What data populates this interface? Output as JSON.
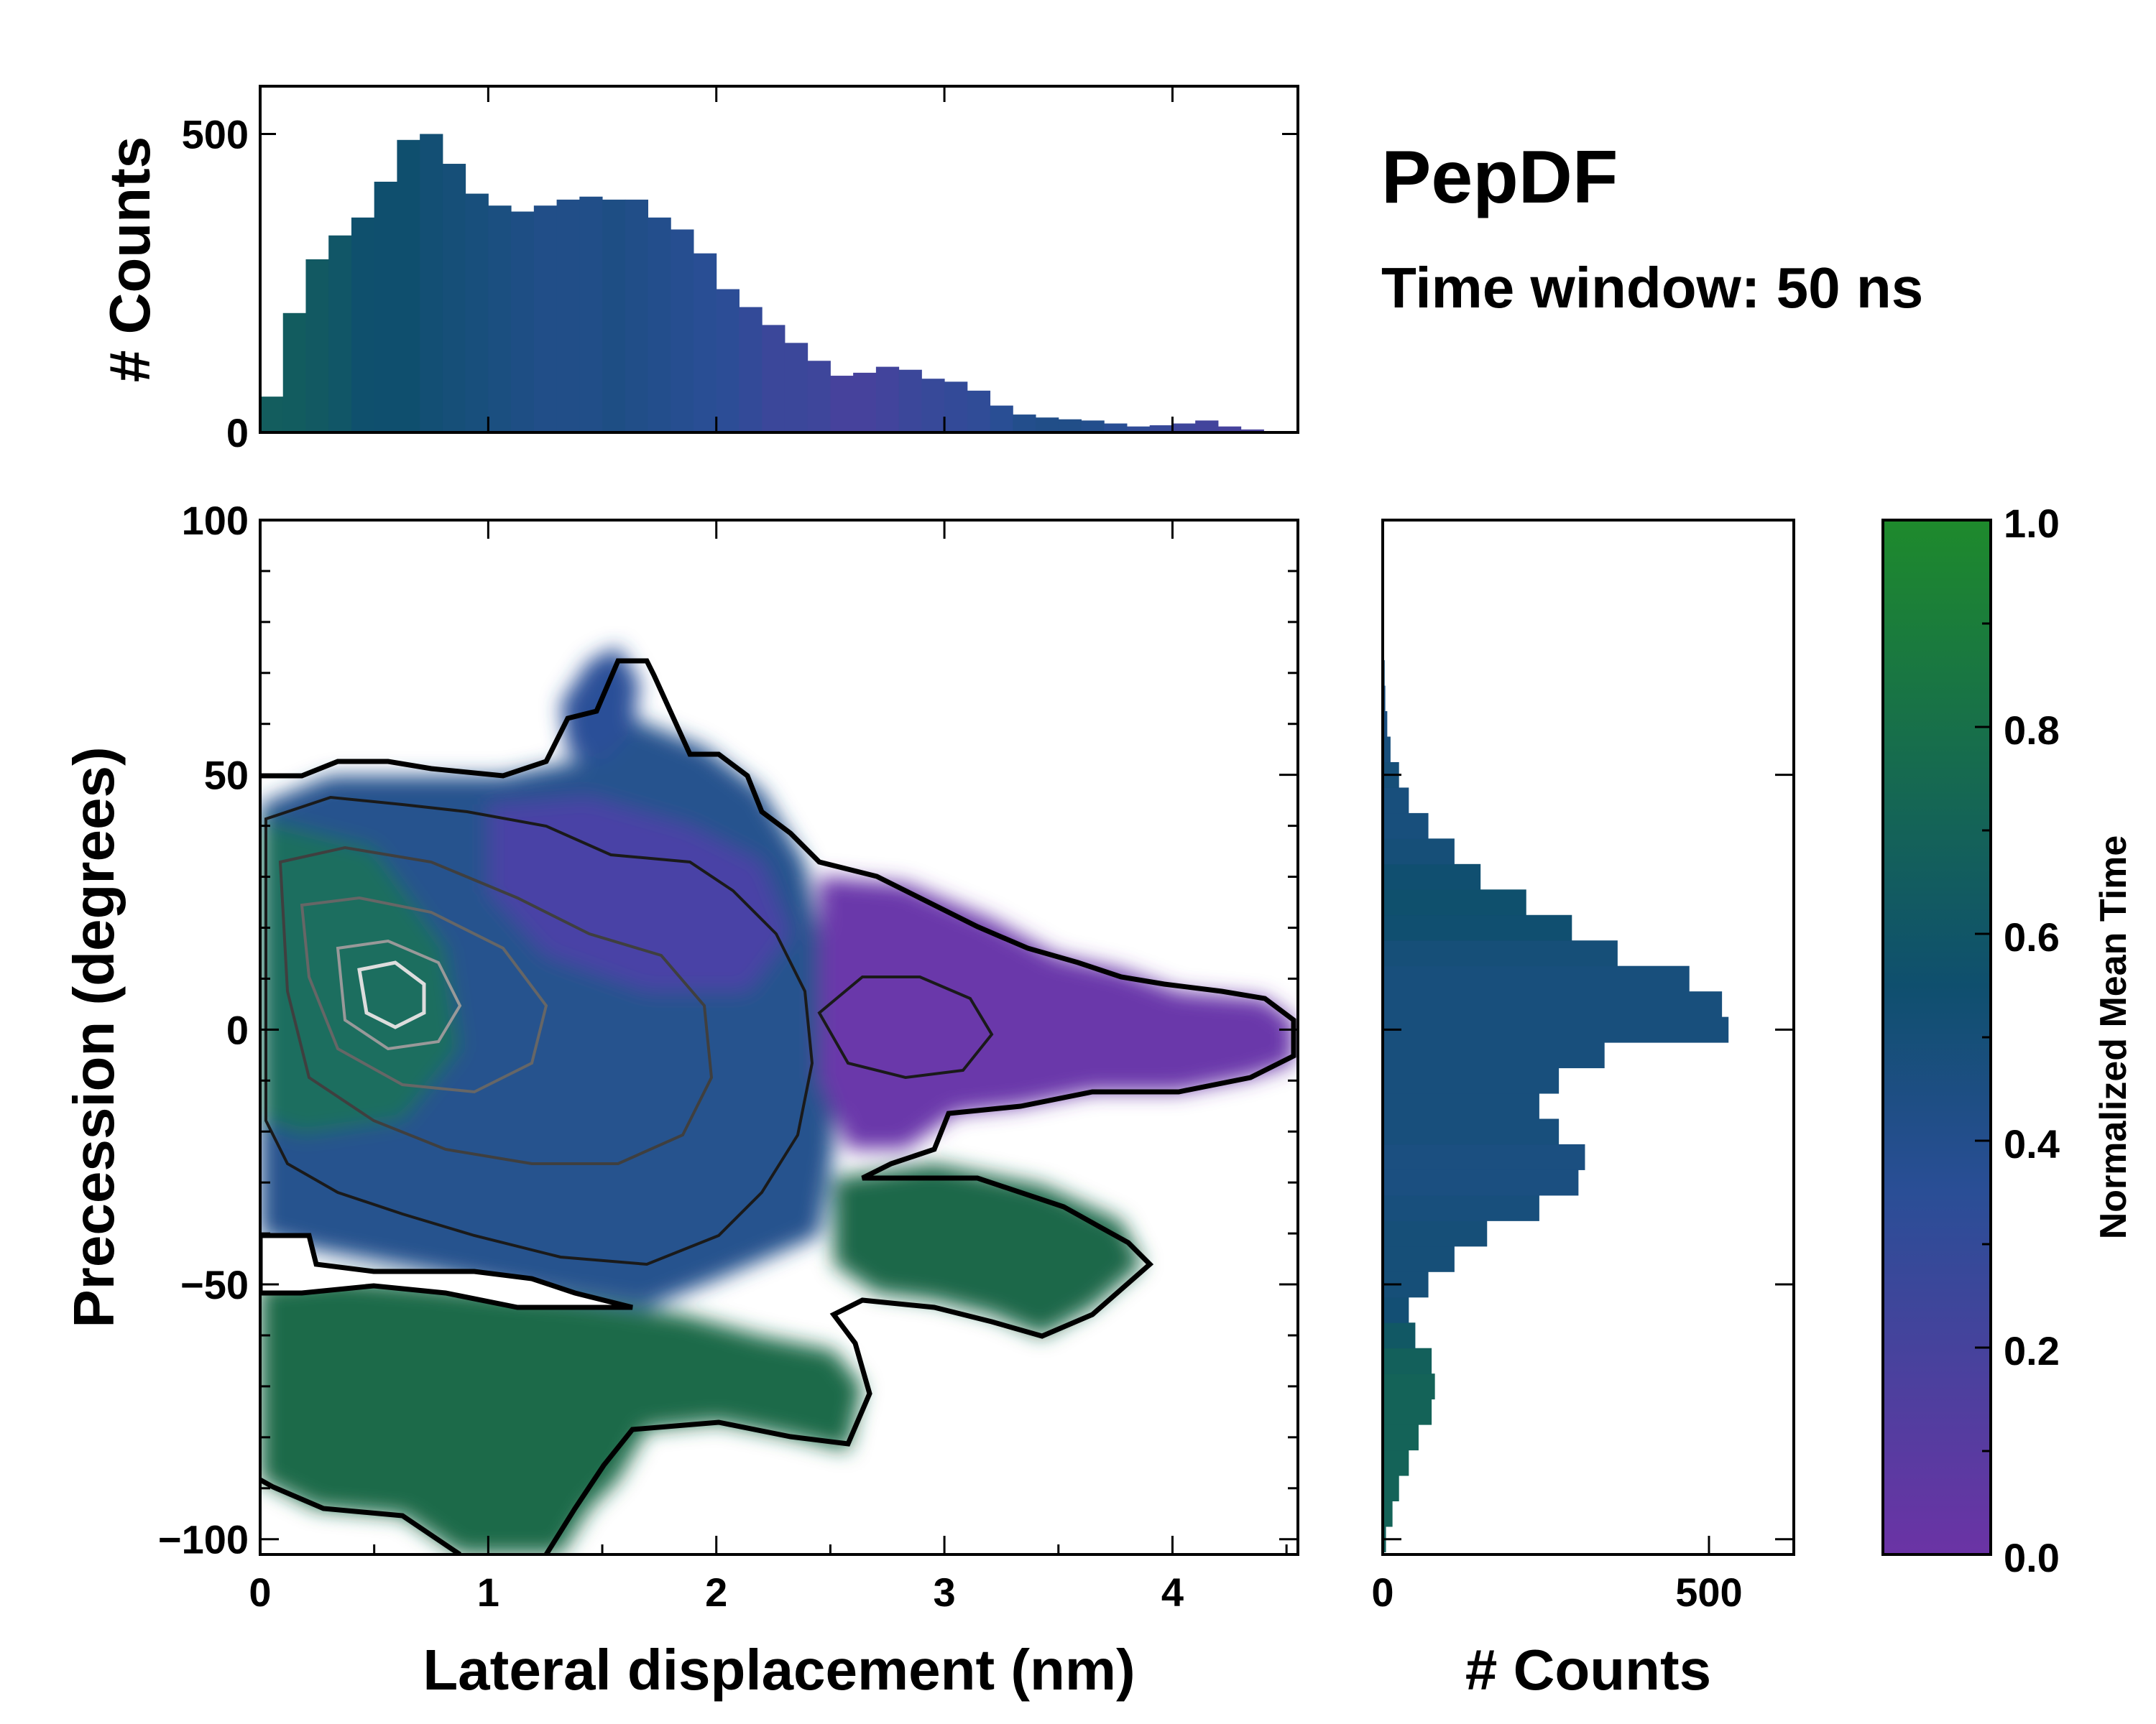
{
  "figure": {
    "title": "PepDF",
    "subtitle": "Time window: 50 ns"
  },
  "chart_data": [
    {
      "type": "heatmap",
      "name": "main",
      "xlabel": "Lateral displacement (nm)",
      "ylabel": "Precession (degrees)",
      "xlim": [
        0,
        4.55
      ],
      "ylim": [
        -103,
        100
      ],
      "xticks": [
        0,
        1,
        2,
        3,
        4
      ],
      "yticks": [
        -100,
        -50,
        0,
        50,
        100
      ],
      "ytick_labels": [
        "−100",
        "−50",
        "0",
        "50",
        "100"
      ],
      "color_meaning": "Normalized Mean Time",
      "regions": [
        {
          "name": "central",
          "x": [
            0,
            2.5
          ],
          "y": [
            -45,
            50
          ],
          "mean_time": 0.5
        },
        {
          "name": "upper-lobe",
          "x": [
            1.2,
            2.3
          ],
          "y": [
            45,
            75
          ],
          "mean_time": 0.4
        },
        {
          "name": "right-arm",
          "x": [
            2.5,
            4.5
          ],
          "y": [
            -15,
            30
          ],
          "mean_time": 0.2
        },
        {
          "name": "lower-right-lobe",
          "x": [
            2.3,
            4.0
          ],
          "y": [
            -60,
            -25
          ],
          "mean_time": 0.7
        },
        {
          "name": "lower-left-lobe",
          "x": [
            0,
            2.7
          ],
          "y": [
            -105,
            -48
          ],
          "mean_time": 0.72
        },
        {
          "name": "upper-left-edge",
          "x": [
            0,
            0.9
          ],
          "y": [
            30,
            50
          ],
          "mean_time": 0.75
        }
      ],
      "density_peak": {
        "x": 0.65,
        "y": 10
      }
    },
    {
      "type": "bar",
      "name": "top-histogram",
      "xlabel": "",
      "ylabel": "# Counts",
      "xlim": [
        0,
        4.55
      ],
      "ylim": [
        0,
        580
      ],
      "yticks": [
        0,
        500
      ],
      "x": [
        0.05,
        0.15,
        0.25,
        0.35,
        0.45,
        0.55,
        0.65,
        0.75,
        0.85,
        0.95,
        1.05,
        1.15,
        1.25,
        1.35,
        1.45,
        1.55,
        1.65,
        1.75,
        1.85,
        1.95,
        2.05,
        2.15,
        2.25,
        2.35,
        2.45,
        2.55,
        2.65,
        2.75,
        2.85,
        2.95,
        3.05,
        3.15,
        3.25,
        3.35,
        3.45,
        3.55,
        3.65,
        3.75,
        3.85,
        3.95,
        4.05,
        4.15,
        4.25,
        4.35,
        4.45
      ],
      "values": [
        60,
        200,
        290,
        330,
        360,
        420,
        490,
        500,
        450,
        400,
        380,
        370,
        380,
        390,
        395,
        390,
        390,
        360,
        340,
        300,
        240,
        210,
        180,
        150,
        120,
        95,
        100,
        110,
        105,
        90,
        85,
        70,
        45,
        30,
        25,
        22,
        20,
        15,
        10,
        12,
        15,
        20,
        10,
        5,
        2
      ],
      "mean_time": [
        0.66,
        0.65,
        0.63,
        0.6,
        0.56,
        0.55,
        0.55,
        0.52,
        0.5,
        0.48,
        0.46,
        0.44,
        0.42,
        0.42,
        0.42,
        0.44,
        0.42,
        0.4,
        0.38,
        0.36,
        0.34,
        0.3,
        0.26,
        0.26,
        0.24,
        0.2,
        0.2,
        0.22,
        0.26,
        0.28,
        0.3,
        0.32,
        0.36,
        0.4,
        0.42,
        0.42,
        0.4,
        0.36,
        0.32,
        0.28,
        0.24,
        0.22,
        0.2,
        0.18,
        0.18
      ]
    },
    {
      "type": "bar",
      "name": "right-histogram",
      "orientation": "horizontal",
      "xlabel": "# Counts",
      "ylabel": "",
      "xlim": [
        0,
        630
      ],
      "ylim": [
        -103,
        100
      ],
      "xticks": [
        0,
        500
      ],
      "y": [
        -100,
        -95,
        -90,
        -85,
        -80,
        -75,
        -70,
        -65,
        -60,
        -55,
        -50,
        -45,
        -40,
        -35,
        -30,
        -25,
        -20,
        -15,
        -10,
        -5,
        0,
        5,
        10,
        15,
        20,
        25,
        30,
        35,
        40,
        45,
        50,
        55,
        60,
        65,
        70,
        75
      ],
      "values": [
        5,
        15,
        25,
        40,
        55,
        75,
        80,
        75,
        50,
        40,
        70,
        110,
        160,
        240,
        300,
        310,
        270,
        240,
        270,
        340,
        530,
        520,
        470,
        360,
        290,
        220,
        150,
        110,
        70,
        40,
        25,
        12,
        7,
        4,
        3,
        2
      ],
      "mean_time": [
        0.68,
        0.7,
        0.7,
        0.7,
        0.7,
        0.7,
        0.7,
        0.68,
        0.62,
        0.52,
        0.5,
        0.5,
        0.5,
        0.48,
        0.46,
        0.46,
        0.48,
        0.48,
        0.48,
        0.48,
        0.48,
        0.48,
        0.48,
        0.5,
        0.54,
        0.56,
        0.54,
        0.5,
        0.48,
        0.48,
        0.5,
        0.48,
        0.46,
        0.46,
        0.5,
        0.5
      ]
    },
    {
      "type": "colorbar",
      "name": "colorbar",
      "label": "Normalized Mean Time",
      "range": [
        0,
        1
      ],
      "ticks": [
        "0.0",
        "0.2",
        "0.4",
        "0.6",
        "0.8",
        "1.0"
      ],
      "tick_values": [
        0,
        0.2,
        0.4,
        0.6,
        0.8,
        1.0
      ],
      "colormap": [
        "#6b33a5",
        "#2a4e96",
        "#0f5a72",
        "#1e8a2c"
      ]
    }
  ]
}
